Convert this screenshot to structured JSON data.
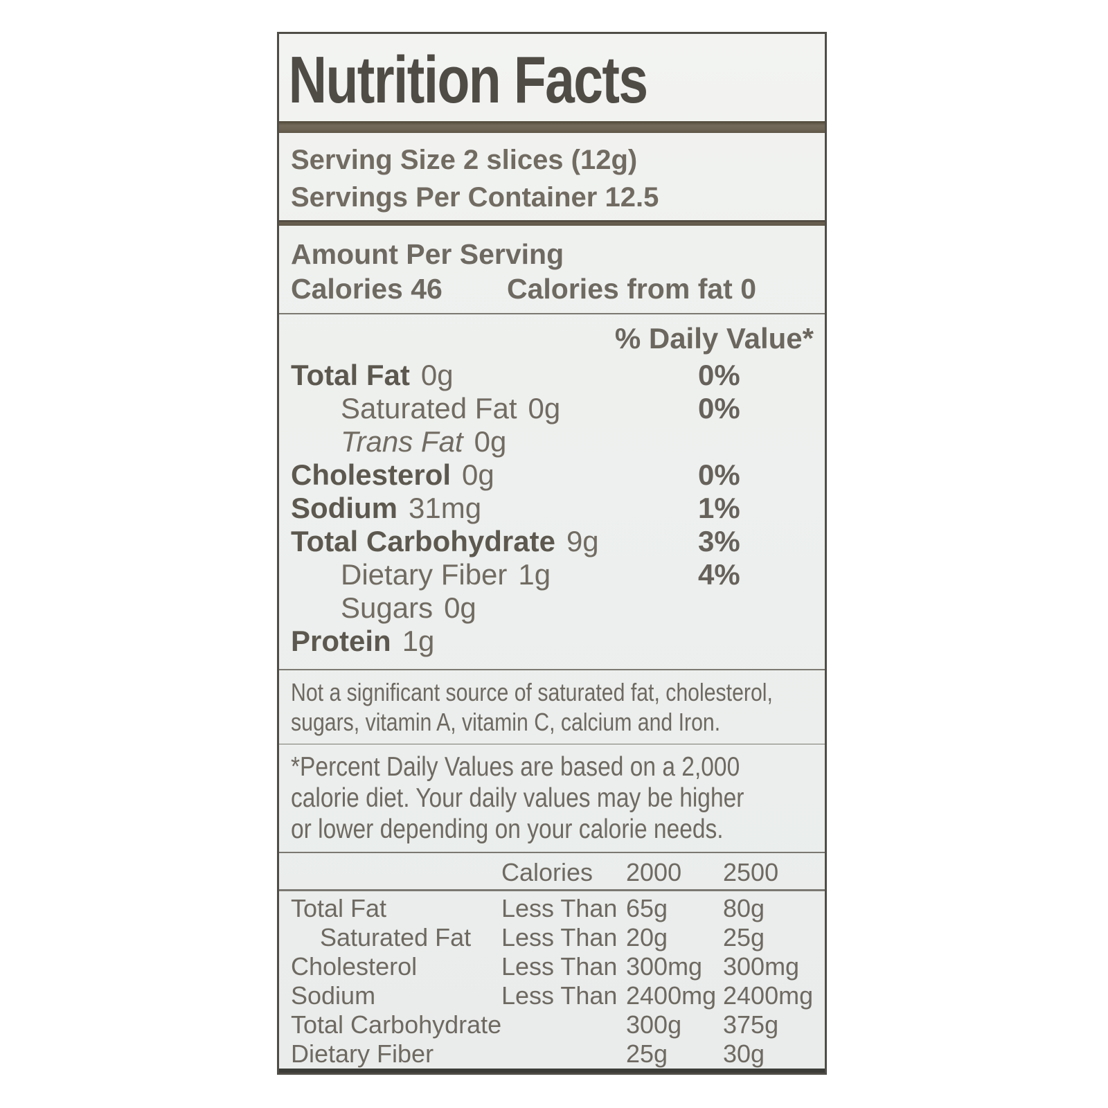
{
  "label": {
    "title": "Nutrition Facts",
    "serving_size": "Serving Size 2 slices (12g)",
    "servings_per_container": "Servings Per Container 12.5",
    "amount_per_serving": "Amount Per Serving",
    "calories": "Calories 46",
    "calories_from_fat": "Calories from fat 0",
    "daily_value_header": "% Daily Value*",
    "nutrients": [
      {
        "name": "Total Fat",
        "amount": "0g",
        "dv": "0%"
      },
      {
        "name": "Saturated Fat",
        "amount": "0g",
        "dv": "0%"
      },
      {
        "name": "Trans Fat",
        "amount": "0g",
        "dv": ""
      },
      {
        "name": "Cholesterol",
        "amount": "0g",
        "dv": "0%"
      },
      {
        "name": "Sodium",
        "amount": "31mg",
        "dv": "1%"
      },
      {
        "name": "Total Carbohydrate",
        "amount": "9g",
        "dv": "3%"
      },
      {
        "name": "Dietary Fiber",
        "amount": "1g",
        "dv": "4%"
      },
      {
        "name": "Sugars",
        "amount": "0g",
        "dv": ""
      },
      {
        "name": "Protein",
        "amount": "1g",
        "dv": ""
      }
    ],
    "note_lines": [
      "Not a significant source of saturated fat, cholesterol,",
      "sugars, vitamin A, vitamin C, calcium and Iron."
    ],
    "footnote_lines": [
      "*Percent Daily Values are based on a 2,000",
      "calorie diet. Your daily values may be higher",
      "or lower depending on your calorie needs."
    ],
    "reference_table": {
      "header": {
        "calories": "Calories",
        "col2000": "2000",
        "col2500": "2500"
      },
      "rows": [
        {
          "name": "Total Fat",
          "qualifier": "Less Than",
          "v2000": "65g",
          "v2500": "80g"
        },
        {
          "name": "Saturated Fat",
          "qualifier": "Less Than",
          "v2000": "20g",
          "v2500": "25g"
        },
        {
          "name": "Cholesterol",
          "qualifier": "Less Than",
          "v2000": "300mg",
          "v2500": "300mg"
        },
        {
          "name": "Sodium",
          "qualifier": "Less Than",
          "v2000": "2400mg",
          "v2500": "2400mg"
        },
        {
          "name": "Total Carbohydrate",
          "qualifier": "",
          "v2000": "300g",
          "v2500": "375g"
        },
        {
          "name": "Dietary Fiber",
          "qualifier": "",
          "v2000": "25g",
          "v2500": "30g"
        }
      ]
    }
  },
  "colors": {
    "label_background": "#eef0ee",
    "text": "#6e6961",
    "bold_text": "#5d584f",
    "title_text": "#4f4b45",
    "divider_bar": "#6e6455",
    "thin_rule": "#7b7872",
    "bottom_bar": "#3c3c38"
  }
}
